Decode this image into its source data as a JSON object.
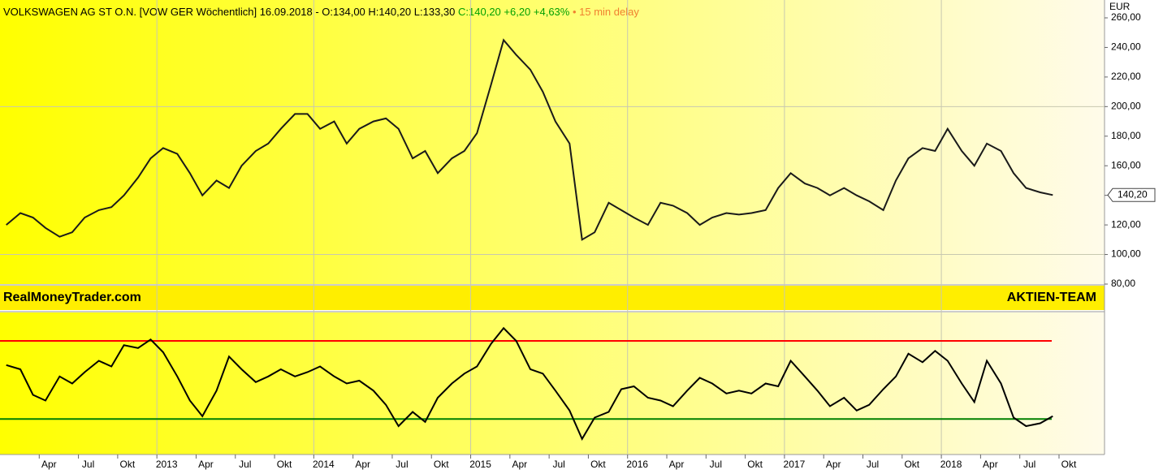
{
  "header": {
    "name": "VOLKSWAGEN AG ST O.N. [VOW GER Wöchentlich] 16.09.2018 - O:134,00 H:140,20 L:133,30",
    "change": "C:140,20 +6,20 +4,63%",
    "delay": "• 15 min delay"
  },
  "banner": {
    "left": "RealMoneyTrader.com",
    "right": "AKTIEN-TEAM"
  },
  "chart_data": [
    {
      "type": "line",
      "unit": "EUR",
      "xlim": [
        2012.0,
        2019.04
      ],
      "ylim": [
        80,
        260
      ],
      "yticks": [
        {
          "value": 80,
          "label": "80,00"
        },
        {
          "value": 100,
          "label": "100,00"
        },
        {
          "value": 120,
          "label": "120,00"
        },
        {
          "value": 140,
          "label": "140,00"
        },
        {
          "value": 160,
          "label": "160,00"
        },
        {
          "value": 180,
          "label": "180,00"
        },
        {
          "value": 200,
          "label": "200,00"
        },
        {
          "value": 220,
          "label": "220,00"
        },
        {
          "value": 240,
          "label": "240,00"
        },
        {
          "value": 260,
          "label": "260,00"
        }
      ],
      "grid_y": [
        100,
        200
      ],
      "grid_x": [
        2013,
        2014,
        2015,
        2016,
        2017,
        2018
      ],
      "last": {
        "value": 140.2,
        "label": "140,20"
      },
      "x": [
        2012.04,
        2012.13,
        2012.21,
        2012.29,
        2012.38,
        2012.46,
        2012.54,
        2012.63,
        2012.71,
        2012.79,
        2012.88,
        2012.96,
        2013.04,
        2013.13,
        2013.21,
        2013.29,
        2013.38,
        2013.46,
        2013.54,
        2013.63,
        2013.71,
        2013.79,
        2013.88,
        2013.96,
        2014.04,
        2014.13,
        2014.21,
        2014.29,
        2014.38,
        2014.46,
        2014.54,
        2014.63,
        2014.71,
        2014.79,
        2014.88,
        2014.96,
        2015.04,
        2015.13,
        2015.21,
        2015.29,
        2015.38,
        2015.46,
        2015.54,
        2015.63,
        2015.71,
        2015.79,
        2015.88,
        2015.96,
        2016.04,
        2016.13,
        2016.21,
        2016.29,
        2016.38,
        2016.46,
        2016.54,
        2016.63,
        2016.71,
        2016.79,
        2016.88,
        2016.96,
        2017.04,
        2017.13,
        2017.21,
        2017.29,
        2017.38,
        2017.46,
        2017.54,
        2017.63,
        2017.71,
        2017.79,
        2017.88,
        2017.96,
        2018.04,
        2018.13,
        2018.21,
        2018.29,
        2018.38,
        2018.46,
        2018.54,
        2018.63,
        2018.71
      ],
      "series": [
        {
          "color": "#1a1a1a",
          "values": [
            120,
            128,
            125,
            118,
            112,
            115,
            125,
            130,
            132,
            140,
            152,
            165,
            172,
            168,
            155,
            140,
            150,
            145,
            160,
            170,
            175,
            185,
            195,
            195,
            185,
            190,
            175,
            185,
            190,
            192,
            185,
            165,
            170,
            155,
            165,
            170,
            182,
            215,
            245,
            235,
            225,
            210,
            190,
            175,
            110,
            115,
            135,
            130,
            125,
            120,
            135,
            133,
            128,
            120,
            125,
            128,
            127,
            128,
            130,
            145,
            155,
            148,
            145,
            140,
            145,
            140,
            136,
            130,
            150,
            165,
            172,
            170,
            185,
            170,
            160,
            175,
            170,
            155,
            145,
            142,
            140.2
          ]
        }
      ]
    },
    {
      "type": "line",
      "xlim": [
        2012.0,
        2019.04
      ],
      "ylim": [
        0,
        100
      ],
      "hlines": [
        {
          "value": 80,
          "color": "#ff0000"
        },
        {
          "value": 25,
          "color": "#008000"
        }
      ],
      "xticks": [
        {
          "value": 2012.25,
          "label": "Apr"
        },
        {
          "value": 2012.5,
          "label": "Jul"
        },
        {
          "value": 2012.75,
          "label": "Okt"
        },
        {
          "value": 2013,
          "label": "2013"
        },
        {
          "value": 2013.25,
          "label": "Apr"
        },
        {
          "value": 2013.5,
          "label": "Jul"
        },
        {
          "value": 2013.75,
          "label": "Okt"
        },
        {
          "value": 2014,
          "label": "2014"
        },
        {
          "value": 2014.25,
          "label": "Apr"
        },
        {
          "value": 2014.5,
          "label": "Jul"
        },
        {
          "value": 2014.75,
          "label": "Okt"
        },
        {
          "value": 2015,
          "label": "2015"
        },
        {
          "value": 2015.25,
          "label": "Apr"
        },
        {
          "value": 2015.5,
          "label": "Jul"
        },
        {
          "value": 2015.75,
          "label": "Okt"
        },
        {
          "value": 2016,
          "label": "2016"
        },
        {
          "value": 2016.25,
          "label": "Apr"
        },
        {
          "value": 2016.5,
          "label": "Jul"
        },
        {
          "value": 2016.75,
          "label": "Okt"
        },
        {
          "value": 2017,
          "label": "2017"
        },
        {
          "value": 2017.25,
          "label": "Apr"
        },
        {
          "value": 2017.5,
          "label": "Jul"
        },
        {
          "value": 2017.75,
          "label": "Okt"
        },
        {
          "value": 2018,
          "label": "2018"
        },
        {
          "value": 2018.25,
          "label": "Apr"
        },
        {
          "value": 2018.5,
          "label": "Jul"
        },
        {
          "value": 2018.75,
          "label": "Okt"
        }
      ],
      "x": [
        2012.04,
        2012.13,
        2012.21,
        2012.29,
        2012.38,
        2012.46,
        2012.54,
        2012.63,
        2012.71,
        2012.79,
        2012.88,
        2012.96,
        2013.04,
        2013.13,
        2013.21,
        2013.29,
        2013.38,
        2013.46,
        2013.54,
        2013.63,
        2013.71,
        2013.79,
        2013.88,
        2013.96,
        2014.04,
        2014.13,
        2014.21,
        2014.29,
        2014.38,
        2014.46,
        2014.54,
        2014.63,
        2014.71,
        2014.79,
        2014.88,
        2014.96,
        2015.04,
        2015.13,
        2015.21,
        2015.29,
        2015.38,
        2015.46,
        2015.54,
        2015.63,
        2015.71,
        2015.79,
        2015.88,
        2015.96,
        2016.04,
        2016.13,
        2016.21,
        2016.29,
        2016.38,
        2016.46,
        2016.54,
        2016.63,
        2016.71,
        2016.79,
        2016.88,
        2016.96,
        2017.04,
        2017.13,
        2017.21,
        2017.29,
        2017.38,
        2017.46,
        2017.54,
        2017.63,
        2017.71,
        2017.79,
        2017.88,
        2017.96,
        2018.04,
        2018.13,
        2018.21,
        2018.29,
        2018.38,
        2018.46,
        2018.54,
        2018.63,
        2018.71
      ],
      "series": [
        {
          "color": "#000000",
          "values": [
            63,
            60,
            42,
            38,
            55,
            50,
            58,
            66,
            62,
            77,
            75,
            81,
            72,
            55,
            38,
            27,
            45,
            69,
            60,
            51,
            55,
            60,
            55,
            58,
            62,
            55,
            50,
            52,
            45,
            35,
            20,
            30,
            23,
            40,
            50,
            57,
            62,
            78,
            89,
            80,
            60,
            57,
            45,
            31,
            11,
            26,
            30,
            46,
            48,
            40,
            38,
            34,
            45,
            54,
            50,
            43,
            45,
            43,
            50,
            48,
            66,
            55,
            45,
            34,
            40,
            31,
            35,
            46,
            55,
            71,
            65,
            73,
            66,
            50,
            37,
            66,
            50,
            26,
            20,
            22,
            27
          ]
        }
      ]
    }
  ]
}
